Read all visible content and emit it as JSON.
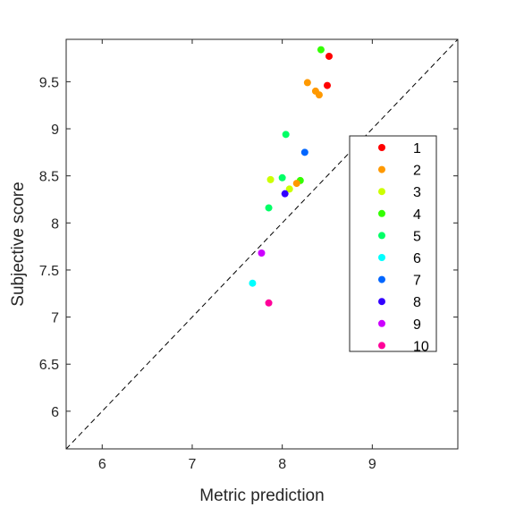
{
  "chart_data": {
    "type": "scatter",
    "title": "",
    "xlabel": "Metric prediction",
    "ylabel": "Subjective score",
    "xlim": [
      5.6,
      9.95
    ],
    "ylim": [
      5.6,
      9.95
    ],
    "xticks": [
      6,
      7,
      8,
      9
    ],
    "yticks": [
      6,
      6.5,
      7,
      7.5,
      8,
      8.5,
      9,
      9.5
    ],
    "xtick_labels": [
      "6",
      "7",
      "8",
      "9"
    ],
    "ytick_labels": [
      "6",
      "6.5",
      "7",
      "7.5",
      "8",
      "8.5",
      "9",
      "9.5"
    ],
    "grid": false,
    "reference_line": "y = x (dashed)",
    "legend_position": "right",
    "series": [
      {
        "name": "1",
        "color": "#ff0000",
        "points": [
          [
            8.52,
            9.77
          ],
          [
            8.5,
            9.46
          ]
        ]
      },
      {
        "name": "2",
        "color": "#ff9900",
        "points": [
          [
            8.28,
            9.49
          ],
          [
            8.37,
            9.4
          ],
          [
            8.41,
            9.36
          ]
        ]
      },
      {
        "name": "3",
        "color": "#ccff00",
        "points": [
          [
            7.87,
            8.46
          ],
          [
            8.08,
            8.36
          ]
        ]
      },
      {
        "name": "4",
        "color": "#33ff00",
        "points": [
          [
            8.43,
            9.84
          ],
          [
            8.2,
            8.45
          ]
        ]
      },
      {
        "name": "5",
        "color": "#00ff66",
        "points": [
          [
            8.04,
            8.94
          ],
          [
            8.0,
            8.48
          ],
          [
            7.85,
            8.16
          ]
        ]
      },
      {
        "name": "6",
        "color": "#00ffff",
        "points": [
          [
            7.67,
            7.36
          ]
        ]
      },
      {
        "name": "7",
        "color": "#0066ff",
        "points": [
          [
            8.25,
            8.75
          ]
        ]
      },
      {
        "name": "8",
        "color": "#3300ff",
        "points": [
          [
            8.03,
            8.31
          ]
        ]
      },
      {
        "name": "9",
        "color": "#cc00ff",
        "points": [
          [
            7.77,
            7.68
          ]
        ]
      },
      {
        "name": "10",
        "color": "#ff0099",
        "points": [
          [
            7.85,
            7.15
          ]
        ]
      }
    ],
    "extra_points": [
      {
        "color": "#ff9900",
        "point": [
          8.16,
          8.42
        ]
      }
    ]
  }
}
